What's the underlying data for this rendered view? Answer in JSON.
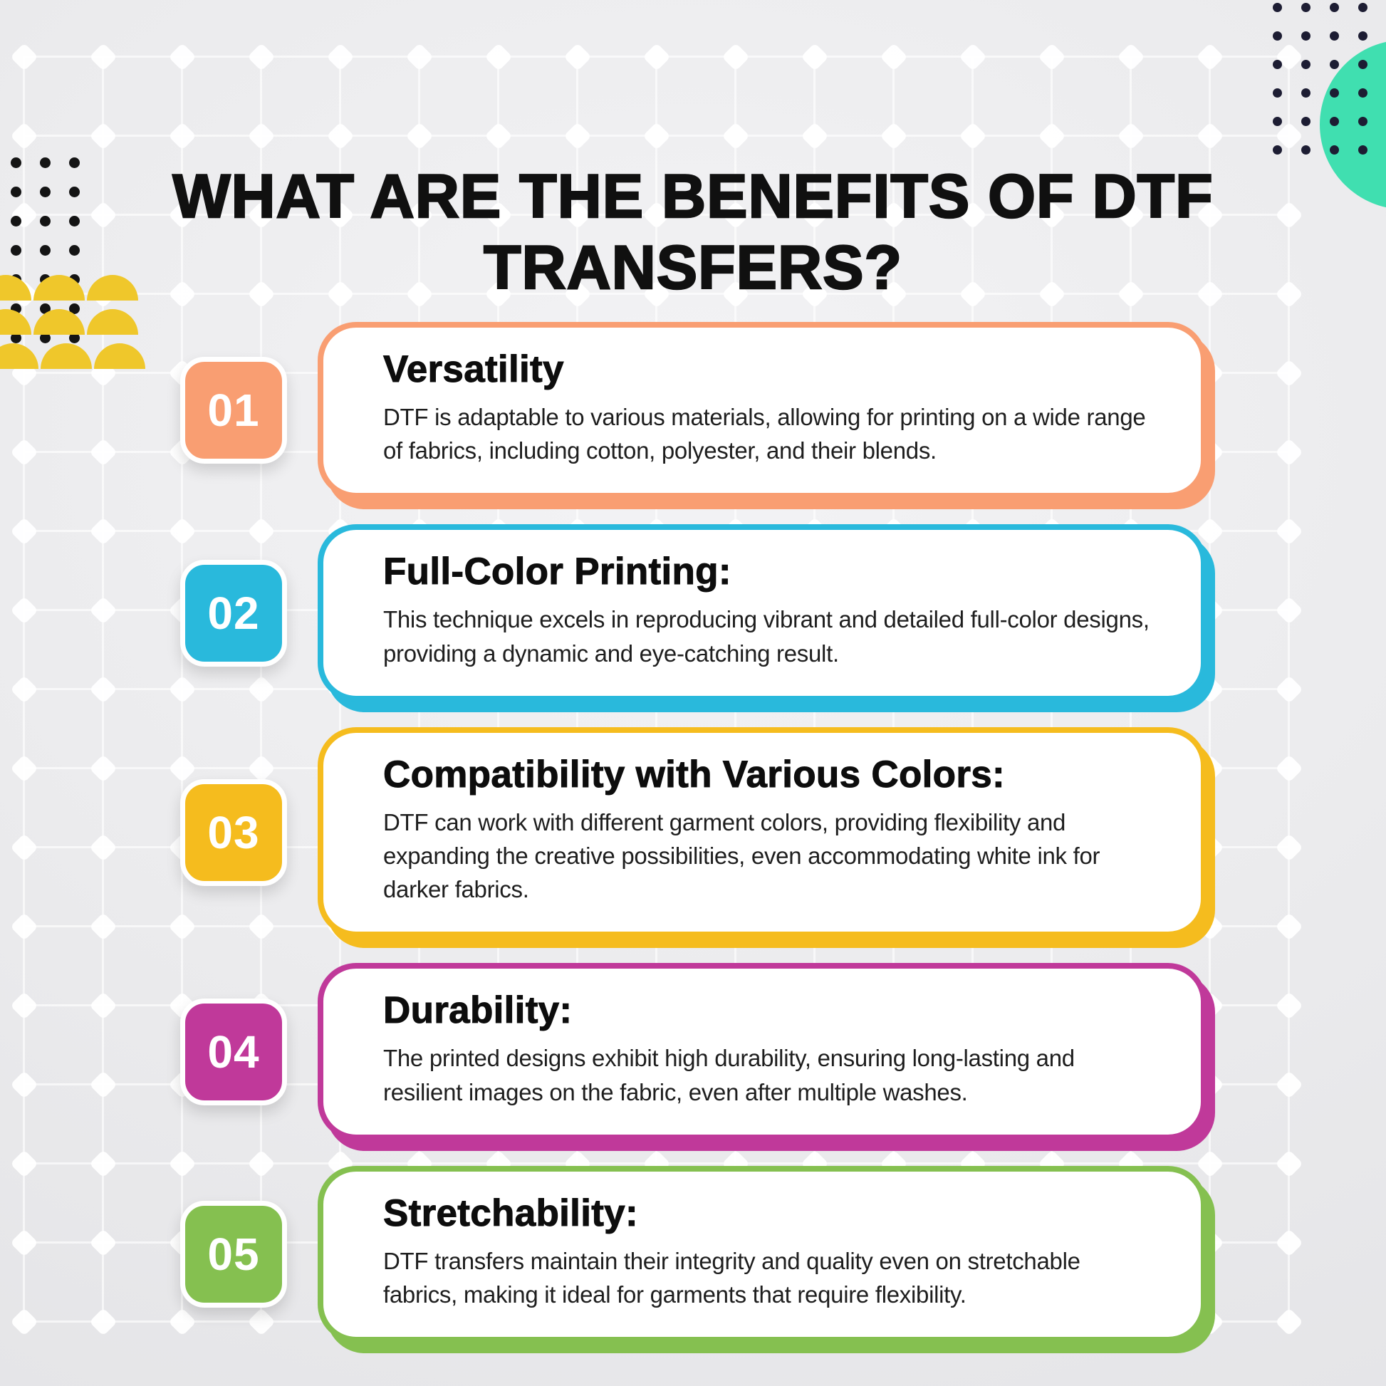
{
  "title": {
    "line1": "WHAT ARE THE BENEFITS OF DTF",
    "line2": "TRANSFERS?"
  },
  "items": [
    {
      "number": "01",
      "color": "#F99E72",
      "heading": "Versatility",
      "description": "DTF is adaptable to various materials, allowing for printing on a wide range of fabrics, including cotton, polyester, and their blends."
    },
    {
      "number": "02",
      "color": "#29B9DC",
      "heading": "Full-Color Printing:",
      "description": "This technique excels in reproducing vibrant and detailed full-color designs, providing a dynamic and eye-catching result."
    },
    {
      "number": "03",
      "color": "#F5BC1E",
      "heading": "Compatibility with Various Colors:",
      "description": "DTF can work with different garment colors, providing flexibility and expanding the creative possibilities, even accommodating white ink for darker fabrics."
    },
    {
      "number": "04",
      "color": "#C0399A",
      "heading": "Durability:",
      "description": "The printed designs exhibit high durability, ensuring long-lasting and resilient images on the fabric, even after multiple washes."
    },
    {
      "number": "05",
      "color": "#85C050",
      "heading": "Stretchability:",
      "description": "DTF transfers maintain their integrity and quality even on stretchable fabrics, making it ideal for garments that require flexibility."
    }
  ],
  "colors": {
    "title_text": "#101010",
    "card_bg": "#FFFFFF",
    "teal_circle": "#40DFB0",
    "dots_top": "#1D1D33",
    "dots_left": "#141414",
    "dome": "#EFC72B"
  }
}
